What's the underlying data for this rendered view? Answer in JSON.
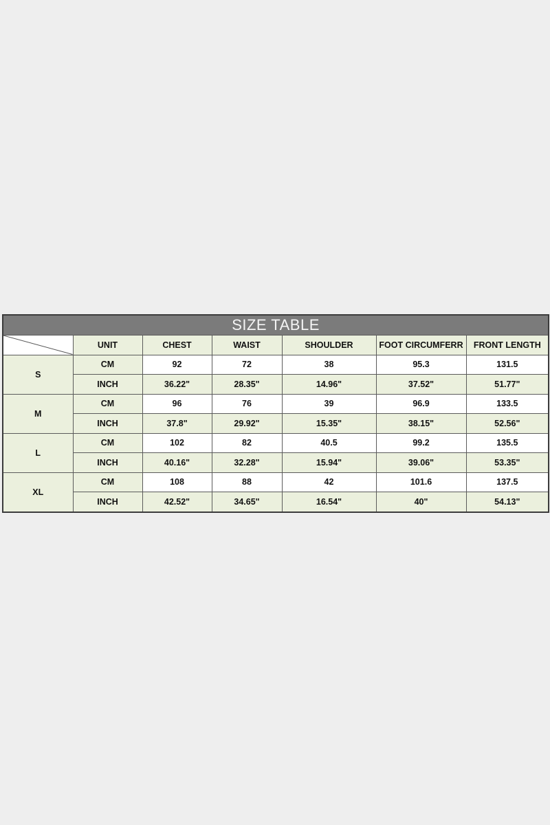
{
  "title": "SIZE TABLE",
  "headers": [
    "UNIT",
    "CHEST",
    "WAIST",
    "SHOULDER",
    "FOOT CIRCUMFERR",
    "FRONT LENGTH"
  ],
  "rows": [
    {
      "size": "S",
      "cm": [
        "CM",
        "92",
        "72",
        "38",
        "95.3",
        "131.5"
      ],
      "inch": [
        "INCH",
        "36.22\"",
        "28.35\"",
        "14.96\"",
        "37.52\"",
        "51.77\""
      ]
    },
    {
      "size": "M",
      "cm": [
        "CM",
        "96",
        "76",
        "39",
        "96.9",
        "133.5"
      ],
      "inch": [
        "INCH",
        "37.8\"",
        "29.92\"",
        "15.35\"",
        "38.15\"",
        "52.56\""
      ]
    },
    {
      "size": "L",
      "cm": [
        "CM",
        "102",
        "82",
        "40.5",
        "99.2",
        "135.5"
      ],
      "inch": [
        "INCH",
        "40.16\"",
        "32.28\"",
        "15.94\"",
        "39.06\"",
        "53.35\""
      ]
    },
    {
      "size": "XL",
      "cm": [
        "CM",
        "108",
        "88",
        "42",
        "101.6",
        "137.5"
      ],
      "inch": [
        "INCH",
        "42.52\"",
        "34.65\"",
        "16.54\"",
        "40\"",
        "54.13\""
      ]
    }
  ],
  "colors": {
    "background": "#eeeeee",
    "title_bar": "#7b7b7b",
    "header_fill": "#ebf0dd",
    "border": "#3a3a3a"
  }
}
